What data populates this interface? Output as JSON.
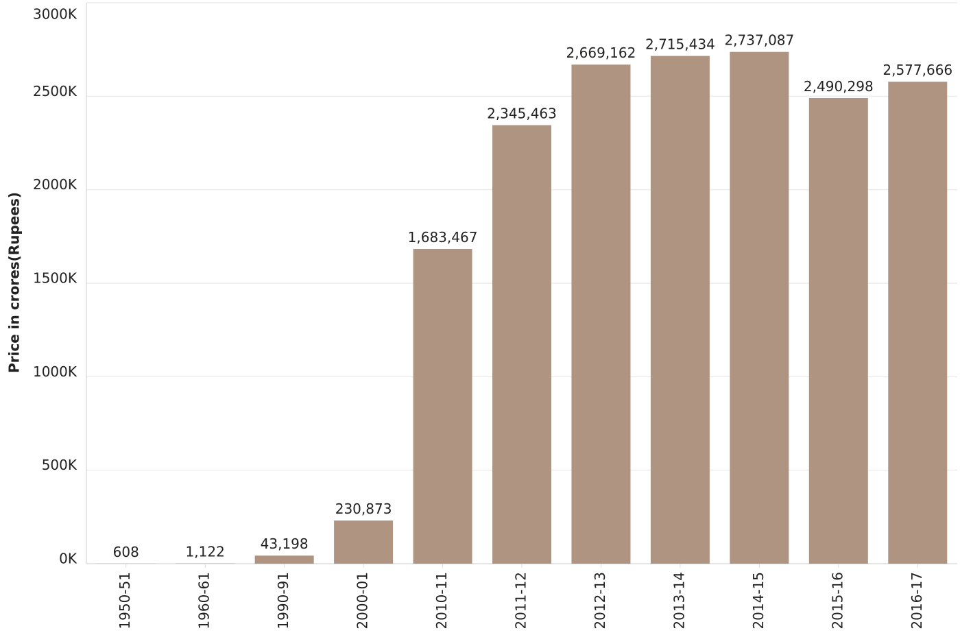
{
  "chart_data": {
    "type": "bar",
    "categories": [
      "1950-51",
      "1960-61",
      "1990-91",
      "2000-01",
      "2010-11",
      "2011-12",
      "2012-13",
      "2013-14",
      "2014-15",
      "2015-16",
      "2016-17"
    ],
    "values": [
      608,
      1122,
      43198,
      230873,
      1683467,
      2345463,
      2669162,
      2715434,
      2737087,
      2490298,
      2577666
    ],
    "data_labels": [
      "608",
      "1,122",
      "43,198",
      "230,873",
      "1,683,467",
      "2,345,463",
      "2,669,162",
      "2,715,434",
      "2,737,087",
      "2,490,298",
      "2,577,666"
    ],
    "y_ticks": [
      0,
      500000,
      1000000,
      1500000,
      2000000,
      2500000,
      3000000
    ],
    "y_tick_labels": [
      "0K",
      "500K",
      "1000K",
      "1500K",
      "2000K",
      "2500K",
      "3000K"
    ],
    "ylim": [
      0,
      3000000
    ],
    "xlabel": "",
    "ylabel": "Price in crores(Rupees)",
    "grid": true,
    "legend": "none"
  },
  "colors": {
    "bar": "#b09482",
    "grid": "#ececec",
    "axis": "#dddddd",
    "text": "#222222"
  }
}
